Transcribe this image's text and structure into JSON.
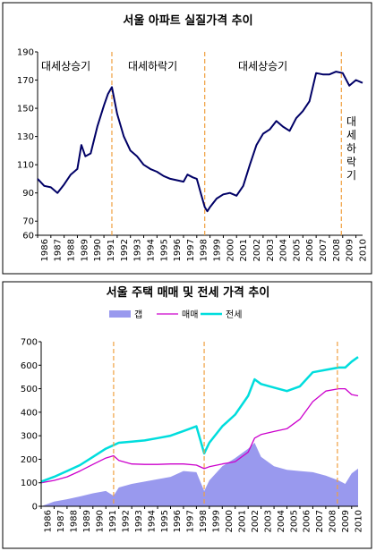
{
  "chart_data": [
    {
      "type": "line",
      "title": "서울 아파트 실질가격 추이",
      "xlabel": "",
      "ylabel": "",
      "x_range": [
        1986,
        2010.5
      ],
      "ylim": [
        60,
        190
      ],
      "yticks": [
        60,
        70,
        90,
        110,
        130,
        150,
        170,
        190
      ],
      "xtick_labels": [
        "1986",
        "1987",
        "1988",
        "1989",
        "1990",
        "1991",
        "1992",
        "1993",
        "1994",
        "1995",
        "1996",
        "1997",
        "1998",
        "1999",
        "2000",
        "2001",
        "2002",
        "2003",
        "2004",
        "2005",
        "2006",
        "2007",
        "2008",
        "2009",
        "2010"
      ],
      "grid": false,
      "colors": {
        "line": "#000066",
        "marker": "#f0a040"
      },
      "annotations": [
        "대세상승기",
        "대세하락기",
        "대세상승기",
        "대세하락기"
      ],
      "phase_lines": [
        1991.6,
        1998.6,
        2008.9
      ],
      "series": [
        {
          "x": [
            1986,
            1986.5,
            1987,
            1987.5,
            1988,
            1988.5,
            1989,
            1989.3,
            1989.6,
            1990,
            1990.5,
            1991,
            1991.3,
            1991.6,
            1992,
            1992.5,
            1993,
            1993.5,
            1994,
            1994.5,
            1995,
            1995.5,
            1996,
            1996.5,
            1997,
            1997.3,
            1997.7,
            1998,
            1998.3,
            1998.6,
            1998.8,
            1999,
            1999.5,
            2000,
            2000.5,
            2001,
            2001.5,
            2002,
            2002.5,
            2003,
            2003.5,
            2004,
            2004.5,
            2005,
            2005.5,
            2006,
            2006.5,
            2007,
            2007.5,
            2008,
            2008.5,
            2009,
            2009.5,
            2010,
            2010.5
          ],
          "values": [
            100,
            95,
            94,
            90,
            96,
            103,
            107,
            124,
            116,
            118,
            137,
            152,
            160,
            165,
            146,
            130,
            120,
            116,
            110,
            107,
            105,
            102,
            100,
            99,
            98,
            103,
            101,
            100,
            90,
            80,
            77,
            80,
            86,
            89,
            90,
            88,
            95,
            110,
            124,
            132,
            135,
            141,
            137,
            134,
            143,
            148,
            155,
            175,
            174,
            174,
            176,
            175,
            166,
            170,
            168
          ]
        }
      ]
    },
    {
      "type": "line",
      "title": "서울 주택 매매 및 전세 가격 추이",
      "xlabel": "",
      "ylabel": "",
      "x_range": [
        1986,
        2010.5
      ],
      "ylim": [
        0,
        700
      ],
      "yticks": [
        0,
        100,
        200,
        300,
        400,
        500,
        600,
        700
      ],
      "xtick_labels": [
        "1986",
        "1987",
        "1988",
        "1989",
        "1990",
        "1991",
        "1992",
        "1993",
        "1994",
        "1995",
        "1996",
        "1997",
        "1998",
        "1999",
        "2000",
        "2001",
        "2002",
        "2003",
        "2004",
        "2005",
        "2006",
        "2007",
        "2008",
        "2009",
        "2010"
      ],
      "grid": false,
      "legend_position": "top",
      "phase_lines": [
        1991.6,
        1998.6,
        2008.9
      ],
      "series": [
        {
          "name": "갭",
          "kind": "area",
          "color": "#9999ee",
          "x": [
            1986,
            1987,
            1988,
            1989,
            1990,
            1991,
            1991.6,
            1992,
            1993,
            1994,
            1995,
            1996,
            1997,
            1998,
            1998.6,
            1999,
            2000,
            2001,
            2002,
            2002.5,
            2003,
            2004,
            2005,
            2006,
            2007,
            2008,
            2009,
            2009.5,
            2010,
            2010.5
          ],
          "values": [
            0,
            20,
            30,
            42,
            55,
            65,
            45,
            80,
            95,
            105,
            115,
            125,
            150,
            145,
            65,
            110,
            170,
            205,
            245,
            270,
            210,
            170,
            155,
            150,
            145,
            130,
            110,
            95,
            140,
            160
          ]
        },
        {
          "name": "매매",
          "kind": "line",
          "color": "#cc00cc",
          "x": [
            1986,
            1987,
            1988,
            1989,
            1990,
            1991,
            1991.6,
            1992,
            1993,
            1994,
            1995,
            1996,
            1997,
            1998,
            1998.6,
            1999,
            2000,
            2001,
            2002,
            2002.5,
            2003,
            2004,
            2005,
            2006,
            2007,
            2008,
            2009,
            2009.5,
            2010,
            2010.5
          ],
          "values": [
            100,
            110,
            125,
            150,
            178,
            205,
            215,
            195,
            180,
            178,
            178,
            180,
            180,
            175,
            160,
            168,
            180,
            190,
            230,
            290,
            305,
            318,
            330,
            370,
            445,
            490,
            500,
            500,
            475,
            470
          ]
        },
        {
          "name": "전세",
          "kind": "line",
          "color": "#00dddd",
          "x": [
            1986,
            1987,
            1988,
            1989,
            1990,
            1991,
            1991.6,
            1992,
            1993,
            1994,
            1995,
            1996,
            1997,
            1998,
            1998.6,
            1999,
            2000,
            2001,
            2002,
            2002.5,
            2003,
            2004,
            2005,
            2006,
            2007,
            2008,
            2009,
            2009.5,
            2010,
            2010.5
          ],
          "values": [
            105,
            125,
            150,
            175,
            210,
            245,
            260,
            270,
            275,
            280,
            290,
            300,
            320,
            340,
            225,
            270,
            340,
            390,
            470,
            540,
            520,
            505,
            490,
            510,
            570,
            580,
            590,
            590,
            615,
            635
          ]
        }
      ]
    }
  ]
}
